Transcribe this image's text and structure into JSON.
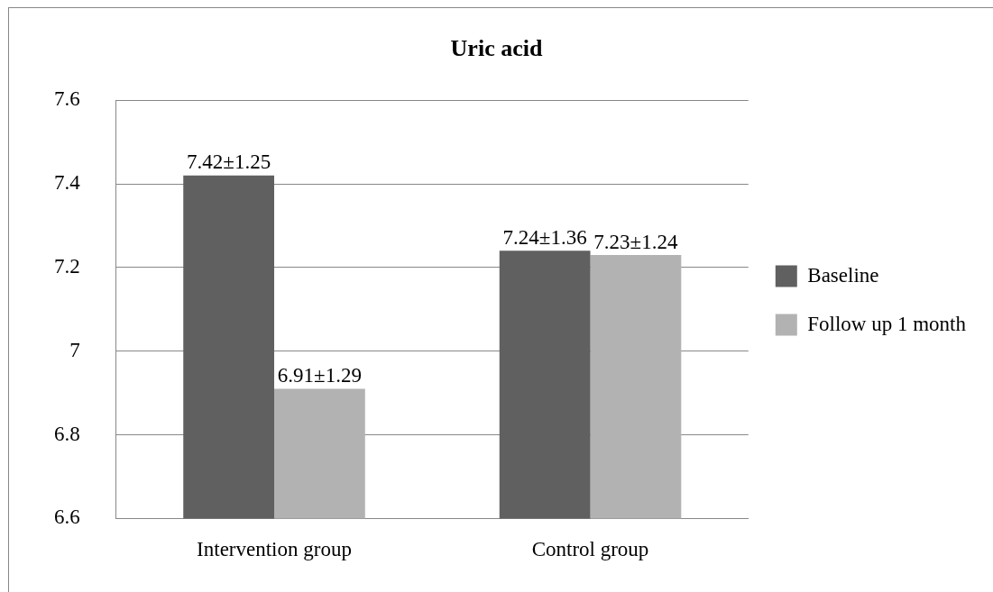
{
  "chart_data": {
    "type": "bar",
    "title": "Uric acid",
    "categories": [
      "Intervention group",
      "Control group"
    ],
    "series": [
      {
        "name": "Baseline",
        "color": "#606060",
        "values": [
          7.42,
          7.24
        ],
        "value_labels": [
          "7.42±1.25",
          "7.24±1.36"
        ]
      },
      {
        "name": "Follow up 1 month",
        "color": "#b2b2b2",
        "values": [
          6.91,
          7.23
        ],
        "value_labels": [
          "6.91±1.29",
          "7.23±1.24"
        ]
      }
    ],
    "ylim": [
      6.6,
      7.6
    ],
    "yticks": [
      6.6,
      6.8,
      7,
      7.2,
      7.4,
      7.6
    ],
    "grid": "y",
    "legend": "right"
  }
}
